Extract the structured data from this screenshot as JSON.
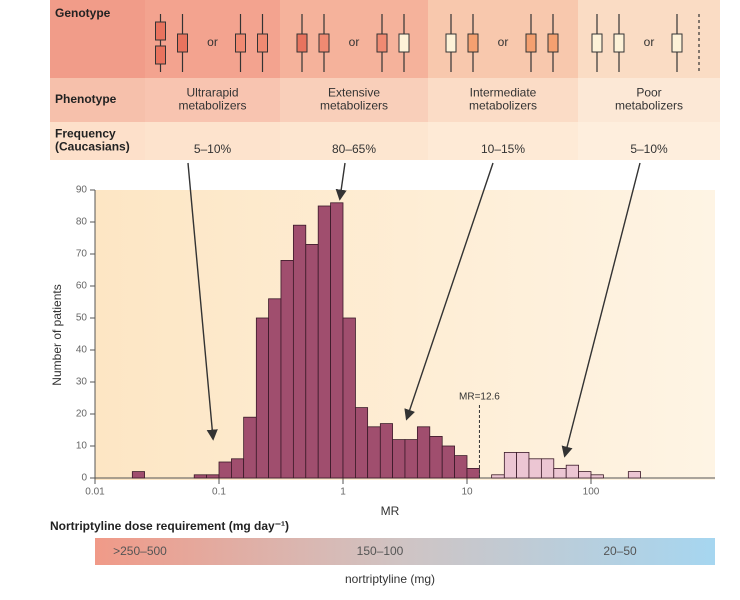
{
  "header_table": {
    "row_labels": [
      "Genotype",
      "Phenotype",
      "Frequency\n(Caucasians)"
    ],
    "or": "or",
    "phenotypes": [
      "Ultrarapid\nmetabolizers",
      "Extensive\nmetabolizers",
      "Intermediate\nmetabolizers",
      "Poor\nmetabolizers"
    ],
    "frequencies": [
      "5–10%",
      "80–65%",
      "10–15%",
      "5–10%"
    ]
  },
  "chart_data": {
    "type": "histogram",
    "xlabel": "MR",
    "ylabel": "Number of patients",
    "log_x": true,
    "xlim": [
      0.01,
      1000
    ],
    "xticks": [
      0.01,
      0.1,
      1,
      10,
      100
    ],
    "ylim": [
      0,
      90
    ],
    "yticks": [
      0,
      10,
      20,
      30,
      40,
      50,
      60,
      70,
      80,
      90
    ],
    "bins": [
      0.02,
      0.0251,
      0.0316,
      0.0398,
      0.0501,
      0.0631,
      0.0794,
      0.1,
      0.126,
      0.158,
      0.2,
      0.251,
      0.316,
      0.398,
      0.501,
      0.631,
      0.794,
      1,
      1.26,
      1.58,
      2,
      2.51,
      3.16,
      3.98,
      5.01,
      6.31,
      7.94,
      10,
      12.6,
      15.8,
      20,
      25.1,
      31.6,
      39.8,
      50.1,
      63.1,
      79.4,
      100,
      126,
      158,
      200,
      251
    ],
    "counts": [
      2,
      0,
      0,
      0,
      0,
      1,
      1,
      5,
      6,
      19,
      50,
      56,
      68,
      79,
      73,
      85,
      86,
      50,
      22,
      16,
      17,
      12,
      12,
      16,
      13,
      10,
      7,
      3,
      0,
      1,
      8,
      8,
      6,
      6,
      3,
      4,
      2,
      1,
      0,
      0,
      2
    ],
    "colors": [
      "#a04e6e",
      "#a04e6e",
      "#a04e6e",
      "#a04e6e",
      "#a04e6e",
      "#a04e6e",
      "#a04e6e",
      "#a04e6e",
      "#a04e6e",
      "#a04e6e",
      "#a04e6e",
      "#a04e6e",
      "#a04e6e",
      "#a04e6e",
      "#a04e6e",
      "#a04e6e",
      "#a04e6e",
      "#a04e6e",
      "#a04e6e",
      "#a04e6e",
      "#a04e6e",
      "#a04e6e",
      "#a04e6e",
      "#a04e6e",
      "#a04e6e",
      "#a04e6e",
      "#a04e6e",
      "#a04e6e",
      "#a04e6e",
      "#ecc6d3",
      "#ecc6d3",
      "#ecc6d3",
      "#ecc6d3",
      "#ecc6d3",
      "#ecc6d3",
      "#ecc6d3",
      "#ecc6d3",
      "#ecc6d3",
      "#ecc6d3",
      "#ecc6d3",
      "#ecc6d3"
    ],
    "annotation": {
      "text": "MR=12.6",
      "x": 12.6
    }
  },
  "dose_scale": {
    "title": "Nortriptyline dose requirement (mg day⁻¹)",
    "labels": [
      ">250–500",
      "150–100",
      "20–50"
    ],
    "caption": "nortriptyline (mg)"
  }
}
